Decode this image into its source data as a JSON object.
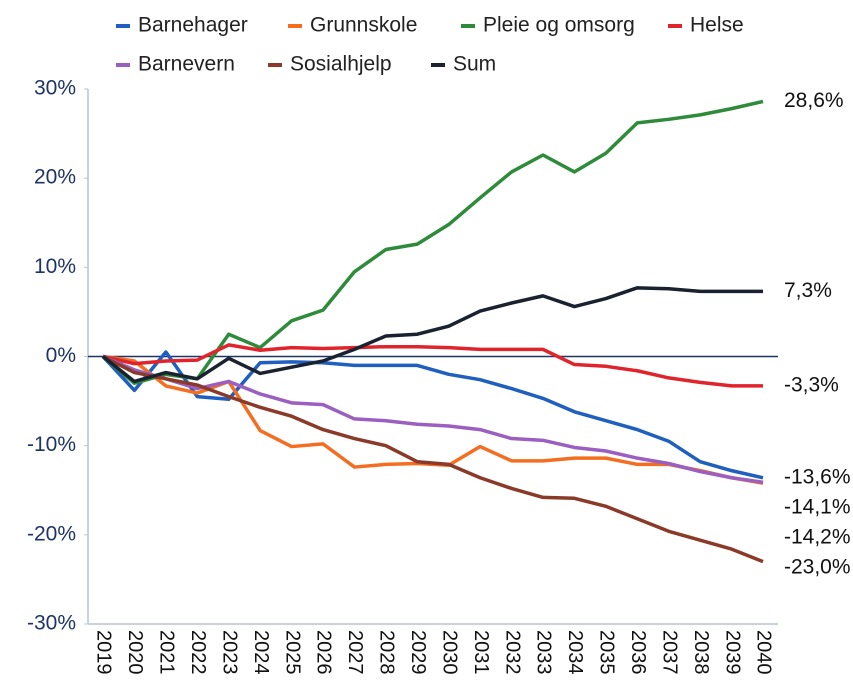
{
  "chart_data": {
    "type": "line",
    "categories": [
      "2019",
      "2020",
      "2021",
      "2022",
      "2023",
      "2024",
      "2025",
      "2026",
      "2027",
      "2028",
      "2029",
      "2030",
      "2031",
      "2032",
      "2033",
      "2034",
      "2035",
      "2036",
      "2037",
      "2038",
      "2039",
      "2040"
    ],
    "series": [
      {
        "name": "Barnehager",
        "color": "#1f5fbf",
        "values": [
          0,
          -3.8,
          0.5,
          -4.5,
          -4.8,
          -0.7,
          -0.6,
          -0.7,
          -1.0,
          -1.0,
          -1.0,
          -2.0,
          -2.6,
          -3.6,
          -4.7,
          -6.2,
          -7.2,
          -8.2,
          -9.5,
          -11.8,
          -12.8,
          -13.6
        ],
        "value_labels": [
          null,
          null,
          null,
          null,
          null,
          null,
          null,
          null,
          null,
          null,
          null,
          null,
          null,
          null,
          null,
          null,
          null,
          null,
          null,
          null,
          null,
          "-13,6%"
        ]
      },
      {
        "name": "Grunnskole",
        "color": "#f36e21",
        "values": [
          0,
          -0.5,
          -3.3,
          -4.1,
          -2.8,
          -8.3,
          -10.1,
          -9.8,
          -12.4,
          -12.1,
          -12.0,
          -12.2,
          -10.1,
          -11.7,
          -11.7,
          -11.4,
          -11.4,
          -12.1,
          -12.1,
          -12.8,
          -13.6,
          -14.2
        ],
        "value_labels": [
          null,
          null,
          null,
          null,
          null,
          null,
          null,
          null,
          null,
          null,
          null,
          null,
          null,
          null,
          null,
          null,
          null,
          null,
          null,
          null,
          null,
          "-14,2%"
        ]
      },
      {
        "name": "Pleie og omsorg",
        "color": "#2e8b3a",
        "values": [
          0,
          -3.0,
          -2.0,
          -2.5,
          2.5,
          1.0,
          4.0,
          5.2,
          9.5,
          12.0,
          12.6,
          14.8,
          17.8,
          20.7,
          22.6,
          20.7,
          22.8,
          26.2,
          26.6,
          27.1,
          27.8,
          28.6
        ],
        "value_labels": [
          null,
          null,
          null,
          null,
          null,
          null,
          null,
          null,
          null,
          null,
          null,
          null,
          null,
          null,
          null,
          null,
          null,
          null,
          null,
          null,
          null,
          "28,6%"
        ]
      },
      {
        "name": "Helse",
        "color": "#e0242b",
        "values": [
          0,
          -0.8,
          -0.5,
          -0.4,
          1.3,
          0.7,
          1.0,
          0.9,
          1.0,
          1.1,
          1.1,
          1.0,
          0.8,
          0.8,
          0.8,
          -0.9,
          -1.1,
          -1.6,
          -2.4,
          -2.9,
          -3.3,
          -3.3
        ],
        "value_labels": [
          null,
          null,
          null,
          null,
          null,
          null,
          null,
          null,
          null,
          null,
          null,
          null,
          null,
          null,
          null,
          null,
          null,
          null,
          null,
          null,
          null,
          "-3,3%"
        ]
      },
      {
        "name": "Barnevern",
        "color": "#9a5fc0",
        "values": [
          0,
          -1.5,
          -2.5,
          -3.6,
          -2.8,
          -4.2,
          -5.2,
          -5.4,
          -7.0,
          -7.2,
          -7.6,
          -7.8,
          -8.2,
          -9.2,
          -9.4,
          -10.2,
          -10.6,
          -11.4,
          -12.0,
          -12.9,
          -13.6,
          -14.1
        ],
        "value_labels": [
          null,
          null,
          null,
          null,
          null,
          null,
          null,
          null,
          null,
          null,
          null,
          null,
          null,
          null,
          null,
          null,
          null,
          null,
          null,
          null,
          null,
          "-14,1%"
        ]
      },
      {
        "name": "Sosialhjelp",
        "color": "#8b3a2a",
        "values": [
          0,
          -1.8,
          -2.5,
          -3.2,
          -4.5,
          -5.7,
          -6.7,
          -8.2,
          -9.2,
          -10.0,
          -11.8,
          -12.1,
          -13.6,
          -14.8,
          -15.8,
          -15.9,
          -16.8,
          -18.2,
          -19.6,
          -20.6,
          -21.6,
          -23.0
        ],
        "value_labels": [
          null,
          null,
          null,
          null,
          null,
          null,
          null,
          null,
          null,
          null,
          null,
          null,
          null,
          null,
          null,
          null,
          null,
          null,
          null,
          null,
          null,
          "-23,0%"
        ]
      },
      {
        "name": "Sum",
        "color": "#1a2230",
        "values": [
          0,
          -2.8,
          -1.8,
          -2.5,
          -0.2,
          -1.9,
          -1.2,
          -0.5,
          0.8,
          2.3,
          2.5,
          3.4,
          5.1,
          6.0,
          6.8,
          5.6,
          6.5,
          7.7,
          7.6,
          7.3,
          7.3,
          7.3
        ],
        "value_labels": [
          null,
          null,
          null,
          null,
          null,
          null,
          null,
          null,
          null,
          null,
          null,
          null,
          null,
          null,
          null,
          null,
          null,
          null,
          null,
          null,
          null,
          "7,3%"
        ]
      }
    ],
    "ylim": [
      -30,
      30
    ],
    "yticks": [
      {
        "value": -30,
        "label": "-30%"
      },
      {
        "value": -20,
        "label": "-20%"
      },
      {
        "value": -10,
        "label": "-10%"
      },
      {
        "value": 0,
        "label": "0%"
      },
      {
        "value": 10,
        "label": "10%"
      },
      {
        "value": 20,
        "label": "20%"
      },
      {
        "value": 30,
        "label": "30%"
      }
    ],
    "grid": false,
    "legend": "top"
  }
}
